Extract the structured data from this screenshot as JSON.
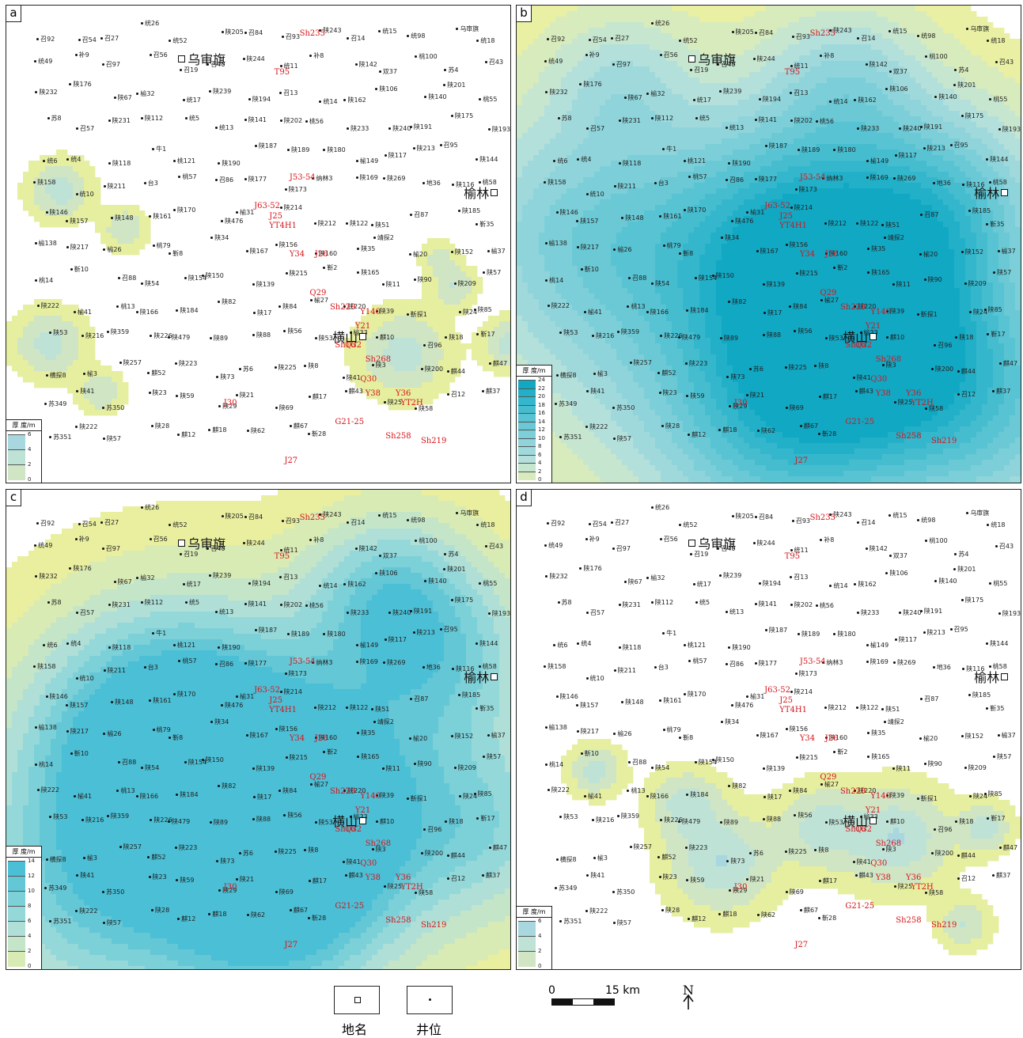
{
  "panels": [
    {
      "letter": "a",
      "legend_title": "厚 度/m",
      "legend_values": [
        "6",
        "4",
        "2",
        "0"
      ],
      "legend_colors": [
        "#a8d7e0",
        "#bfe2d6",
        "#cfe5c4",
        "#e6eea0"
      ]
    },
    {
      "letter": "b",
      "legend_title": "厚 度/m",
      "legend_values": [
        "24",
        "22",
        "20",
        "18",
        "16",
        "14",
        "12",
        "10",
        "8",
        "6",
        "4",
        "2",
        "0"
      ],
      "legend_colors": [
        "#11a8c4",
        "#22b0c8",
        "#34b7cc",
        "#46bdcf",
        "#58c3d2",
        "#6ac9d5",
        "#7ccfd8",
        "#8ed4da",
        "#a0d9dc",
        "#b4e0db",
        "#c6e6cf",
        "#d8ebbc",
        "#e9f0a3"
      ]
    },
    {
      "letter": "c",
      "legend_title": "厚 度/m",
      "legend_values": [
        "14",
        "12",
        "10",
        "8",
        "6",
        "4",
        "2",
        "0"
      ],
      "legend_colors": [
        "#4bbfd5",
        "#63c7d6",
        "#7cd0d8",
        "#95d8d9",
        "#afdfd6",
        "#c4e5c8",
        "#d9ebb4",
        "#e9ef9f"
      ]
    },
    {
      "letter": "d",
      "legend_title": "厚 度/m",
      "legend_values": [
        "6",
        "4",
        "2",
        "0"
      ],
      "legend_colors": [
        "#a8d7e0",
        "#bfe2d6",
        "#cfe5c4",
        "#e6eea0"
      ]
    }
  ],
  "towns": {
    "wushenqi": "乌审旗",
    "yulin": "榆林",
    "hengshan": "横山"
  },
  "key_wells": [
    "Sh235",
    "T95",
    "J53-54",
    "J63-52",
    "YT4H1",
    "J25",
    "Y34",
    "J26",
    "Q29",
    "Sh229",
    "Y140",
    "Y21",
    "Sh16",
    "Q32",
    "Sh268",
    "Q30",
    "Y38",
    "Y36",
    "YT2H",
    "J30",
    "G21-25",
    "Sh258",
    "Sh219",
    "J27"
  ],
  "wells": [
    "召92",
    "召54",
    "召27",
    "统26",
    "统52",
    "陕205",
    "召84",
    "召93",
    "陕243",
    "召14",
    "统15",
    "统98",
    "乌审旗",
    "统18",
    "统49",
    "补9",
    "召97",
    "召56",
    "召19",
    "召40",
    "陕244",
    "统11",
    "补8",
    "陕142",
    "双37",
    "桃100",
    "苏4",
    "召43",
    "陕232",
    "陕176",
    "陕67",
    "榆32",
    "统17",
    "陕239",
    "陕194",
    "召13",
    "统14",
    "陕162",
    "陕106",
    "陕140",
    "陕201",
    "桃55",
    "苏8",
    "召57",
    "陕231",
    "陕112",
    "统5",
    "统13",
    "陕141",
    "陕202",
    "桃56",
    "陕233",
    "陕240",
    "陕191",
    "陕175",
    "陕193",
    "统6",
    "统4",
    "陕118",
    "牛1",
    "桃121",
    "陕190",
    "陕187",
    "陕189",
    "陕180",
    "榆149",
    "陕117",
    "陕213",
    "召95",
    "陕144",
    "陕158",
    "统10",
    "陕211",
    "台3",
    "桃57",
    "召86",
    "陕177",
    "陕173",
    "纳林3",
    "陕169",
    "陕269",
    "地36",
    "陕116",
    "桃58",
    "陕146",
    "陕157",
    "陕148",
    "陕161",
    "陕170",
    "陕476",
    "榆31",
    "陕214",
    "陕212",
    "陕122",
    "陕51",
    "召87",
    "陕185",
    "靳35",
    "榆138",
    "陕217",
    "榆26",
    "桃79",
    "靳8",
    "陕34",
    "陕167",
    "陕156",
    "陕160",
    "陕35",
    "靖探2",
    "榆20",
    "陕152",
    "榆37",
    "桃14",
    "靳10",
    "召88",
    "陕54",
    "陕154",
    "陕150",
    "陕139",
    "陕215",
    "靳2",
    "陕165",
    "陕11",
    "陕90",
    "陕209",
    "陕57",
    "陕222",
    "榆41",
    "桃13",
    "陕166",
    "陕184",
    "陕82",
    "陕17",
    "陕84",
    "榆27",
    "陕220",
    "陕39",
    "靳探1",
    "陕24",
    "陕85",
    "陕53",
    "陕216",
    "陕359",
    "陕226",
    "陕479",
    "陕89",
    "陕88",
    "陕56",
    "陕53",
    "榆33",
    "麒10",
    "召96",
    "陕18",
    "靳17",
    "横探8",
    "榆3",
    "陕257",
    "麒52",
    "陕223",
    "陕73",
    "苏6",
    "陕225",
    "陕8",
    "陕41",
    "陕3",
    "陕200",
    "麒44",
    "麒47",
    "苏349",
    "陕41",
    "苏350",
    "陕23",
    "陕59",
    "陕29",
    "陕21",
    "陕69",
    "麒17",
    "麒43",
    "陕25",
    "陕58",
    "召12",
    "麒37",
    "苏351",
    "陕222",
    "陕57",
    "陕28",
    "麒12",
    "麒18",
    "陕62",
    "麒67",
    "靳28"
  ],
  "bottom_legend": {
    "place": "地名",
    "well": "井位"
  },
  "scale": {
    "zero": "0",
    "dist": "15 km"
  },
  "north": "N"
}
